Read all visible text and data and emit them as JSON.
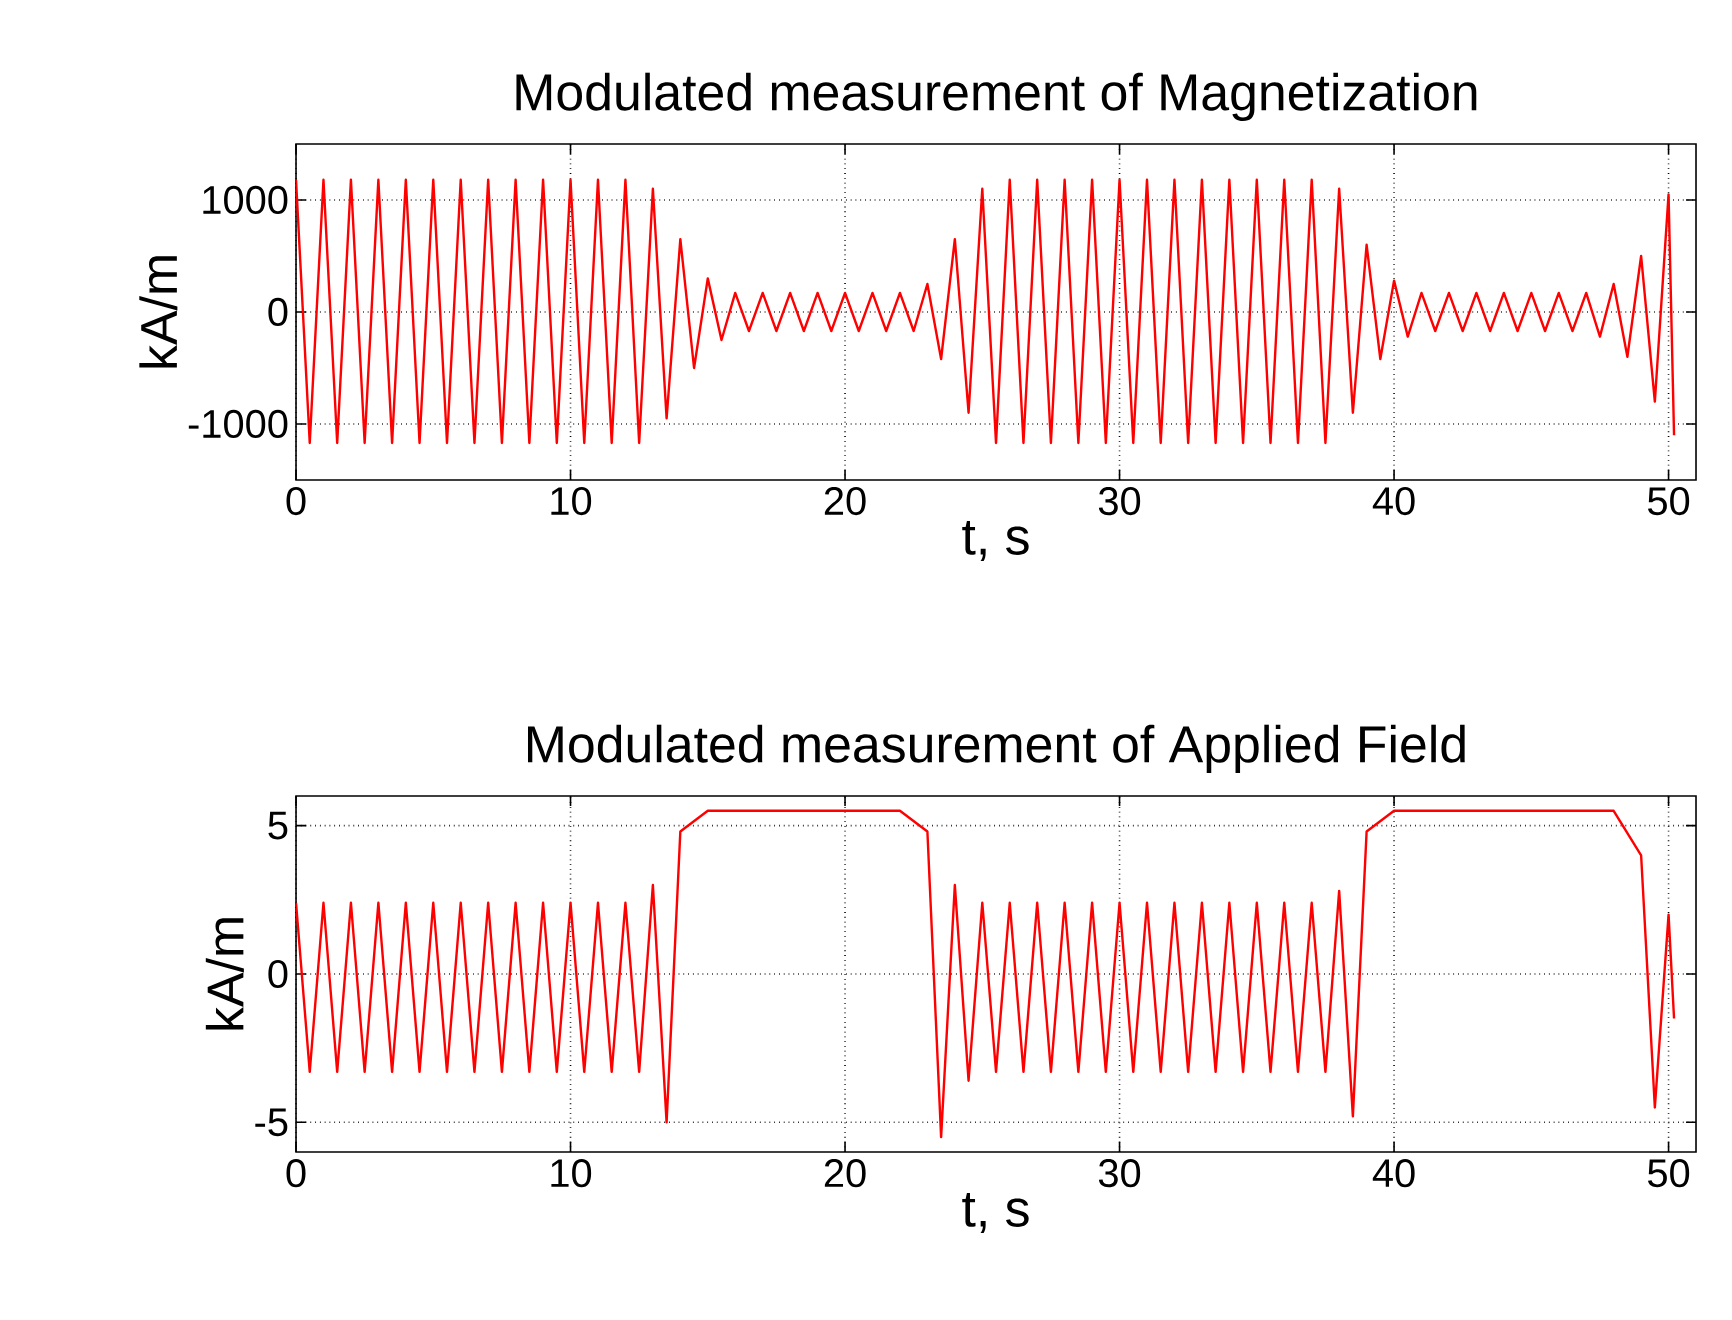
{
  "chart_data": [
    {
      "type": "line",
      "title": "Modulated measurement of Magnetization",
      "xlabel": "t, s",
      "ylabel": "kA/m",
      "color": "#ff0000",
      "grid": true,
      "xlim": [
        0,
        51
      ],
      "ylim": [
        -1500,
        1500
      ],
      "xticks": [
        0,
        10,
        20,
        30,
        40,
        50
      ],
      "yticks": [
        -1000,
        0,
        1000
      ],
      "x": [
        0,
        0.5,
        1,
        1.5,
        2,
        2.5,
        3,
        3.5,
        4,
        4.5,
        5,
        5.5,
        6,
        6.5,
        7,
        7.5,
        8,
        8.5,
        9,
        9.5,
        10,
        10.5,
        11,
        11.5,
        12,
        12.5,
        13,
        13.5,
        14,
        14.5,
        15,
        15.5,
        16,
        16.5,
        17,
        17.5,
        18,
        18.5,
        19,
        19.5,
        20,
        20.5,
        21,
        21.5,
        22,
        22.5,
        23,
        23.5,
        24,
        24.5,
        25,
        25.5,
        26,
        26.5,
        27,
        27.5,
        28,
        28.5,
        29,
        29.5,
        30,
        30.5,
        31,
        31.5,
        32,
        32.5,
        33,
        33.5,
        34,
        34.5,
        35,
        35.5,
        36,
        36.5,
        37,
        37.5,
        38,
        38.5,
        39,
        39.5,
        40,
        40.5,
        41,
        41.5,
        42,
        42.5,
        43,
        43.5,
        44,
        44.5,
        45,
        45.5,
        46,
        46.5,
        47,
        47.5,
        48,
        48.5,
        49,
        49.5,
        50,
        50.2
      ],
      "values": [
        1180,
        -1170,
        1180,
        -1170,
        1180,
        -1170,
        1180,
        -1170,
        1180,
        -1170,
        1180,
        -1170,
        1180,
        -1170,
        1180,
        -1170,
        1180,
        -1170,
        1180,
        -1170,
        1180,
        -1170,
        1180,
        -1170,
        1180,
        -1170,
        1100,
        -950,
        650,
        -500,
        300,
        -250,
        170,
        -170,
        170,
        -170,
        170,
        -170,
        170,
        -170,
        170,
        -170,
        170,
        -170,
        170,
        -170,
        250,
        -420,
        650,
        -900,
        1100,
        -1170,
        1180,
        -1170,
        1180,
        -1170,
        1180,
        -1170,
        1180,
        -1170,
        1180,
        -1170,
        1180,
        -1170,
        1180,
        -1170,
        1180,
        -1170,
        1180,
        -1170,
        1180,
        -1170,
        1180,
        -1170,
        1180,
        -1170,
        1100,
        -900,
        600,
        -420,
        280,
        -220,
        170,
        -170,
        170,
        -170,
        170,
        -170,
        170,
        -170,
        170,
        -170,
        170,
        -170,
        170,
        -220,
        250,
        -400,
        500,
        -800,
        1050,
        -1100
      ]
    },
    {
      "type": "line",
      "title": "Modulated measurement of Applied Field",
      "xlabel": "t, s",
      "ylabel": "kA/m",
      "color": "#ff0000",
      "grid": true,
      "xlim": [
        0,
        51
      ],
      "ylim": [
        -6,
        6
      ],
      "xticks": [
        0,
        10,
        20,
        30,
        40,
        50
      ],
      "yticks": [
        -5,
        0,
        5
      ],
      "x": [
        0,
        0.5,
        1,
        1.5,
        2,
        2.5,
        3,
        3.5,
        4,
        4.5,
        5,
        5.5,
        6,
        6.5,
        7,
        7.5,
        8,
        8.5,
        9,
        9.5,
        10,
        10.5,
        11,
        11.5,
        12,
        12.5,
        13,
        13.5,
        14,
        14.5,
        15,
        15.5,
        16,
        16.5,
        17,
        17.5,
        18,
        18.5,
        19,
        19.5,
        20,
        20.5,
        21,
        21.5,
        22,
        22.5,
        23,
        23.5,
        24,
        24.5,
        25,
        25.5,
        26,
        26.5,
        27,
        27.5,
        28,
        28.5,
        29,
        29.5,
        30,
        30.5,
        31,
        31.5,
        32,
        32.5,
        33,
        33.5,
        34,
        34.5,
        35,
        35.5,
        36,
        36.5,
        37,
        37.5,
        38,
        38.5,
        39,
        39.5,
        40,
        40.5,
        41,
        41.5,
        42,
        42.5,
        43,
        43.5,
        44,
        44.5,
        45,
        45.5,
        46,
        46.5,
        47,
        47.5,
        48,
        48.5,
        49,
        49.5,
        50,
        50.2
      ],
      "values": [
        2.4,
        -3.3,
        2.4,
        -3.3,
        2.4,
        -3.3,
        2.4,
        -3.3,
        2.4,
        -3.3,
        2.4,
        -3.3,
        2.4,
        -3.3,
        2.4,
        -3.3,
        2.4,
        -3.3,
        2.4,
        -3.3,
        2.4,
        -3.3,
        2.4,
        -3.3,
        2.4,
        -3.3,
        3.0,
        -5.0,
        4.8,
        null,
        5.5,
        null,
        5.5,
        null,
        5.5,
        null,
        5.5,
        null,
        5.5,
        null,
        5.5,
        null,
        5.5,
        null,
        5.5,
        null,
        4.8,
        -5.5,
        3.0,
        -3.6,
        2.4,
        -3.3,
        2.4,
        -3.3,
        2.4,
        -3.3,
        2.4,
        -3.3,
        2.4,
        -3.3,
        2.4,
        -3.3,
        2.4,
        -3.3,
        2.4,
        -3.3,
        2.4,
        -3.3,
        2.4,
        -3.3,
        2.4,
        -3.3,
        2.4,
        -3.3,
        2.4,
        -3.3,
        2.8,
        -4.8,
        4.8,
        null,
        5.5,
        null,
        5.5,
        null,
        5.5,
        null,
        5.5,
        null,
        5.5,
        null,
        5.5,
        null,
        5.5,
        null,
        5.5,
        null,
        5.5,
        null,
        4.0,
        -4.5,
        2.0,
        -1.5
      ]
    }
  ]
}
